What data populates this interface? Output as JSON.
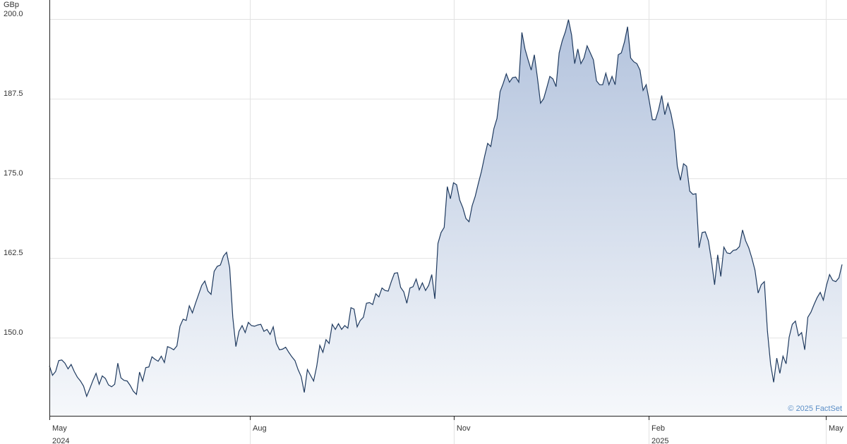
{
  "chart_data": {
    "type": "area",
    "y_unit": "GBp",
    "credit": "© 2025 FactSet",
    "color": "#1f3a5f",
    "values": [
      145.6,
      144.1,
      144.7,
      146.4,
      146.5,
      146.0,
      145.1,
      145.8,
      144.7,
      143.8,
      143.2,
      142.4,
      140.8,
      142.0,
      143.3,
      144.4,
      142.7,
      144.0,
      143.6,
      142.6,
      142.3,
      142.7,
      146.0,
      143.7,
      143.3,
      143.2,
      142.5,
      141.6,
      141.1,
      144.6,
      143.2,
      145.3,
      145.4,
      147.0,
      146.6,
      146.3,
      147.1,
      146.1,
      148.6,
      148.4,
      148.1,
      148.7,
      151.8,
      152.9,
      152.7,
      155.0,
      153.9,
      155.4,
      156.8,
      158.2,
      158.9,
      157.3,
      156.8,
      160.4,
      161.2,
      161.4,
      162.8,
      163.4,
      161.0,
      153.2,
      148.6,
      151.0,
      151.9,
      150.8,
      152.4,
      151.9,
      151.8,
      152.0,
      152.1,
      151.0,
      151.3,
      150.5,
      151.7,
      149.1,
      148.1,
      148.2,
      148.5,
      147.7,
      147.0,
      146.4,
      145.0,
      143.9,
      141.4,
      145.0,
      144.1,
      143.2,
      145.5,
      148.8,
      147.7,
      149.7,
      149.1,
      152.1,
      151.3,
      152.2,
      151.3,
      151.9,
      151.5,
      154.7,
      154.5,
      151.7,
      152.7,
      153.2,
      155.4,
      155.5,
      155.2,
      156.9,
      156.4,
      157.8,
      157.4,
      157.3,
      158.8,
      160.1,
      160.2,
      157.9,
      157.2,
      155.4,
      157.8,
      158.0,
      159.2,
      157.5,
      158.6,
      157.4,
      158.2,
      159.9,
      156.1,
      164.8,
      166.5,
      167.3,
      173.7,
      171.8,
      174.3,
      174.0,
      171.6,
      170.4,
      168.7,
      168.2,
      170.7,
      172.2,
      174.2,
      176.1,
      178.4,
      180.5,
      180.0,
      182.8,
      184.4,
      188.6,
      189.9,
      191.4,
      190.1,
      190.8,
      190.9,
      190.1,
      197.9,
      195.3,
      193.6,
      192.0,
      194.4,
      190.8,
      186.8,
      187.5,
      189.2,
      191.0,
      190.6,
      189.4,
      194.7,
      196.6,
      198.0,
      199.9,
      197.5,
      193.0,
      195.3,
      193.0,
      193.9,
      195.8,
      194.7,
      193.6,
      190.3,
      189.7,
      189.7,
      191.5,
      189.7,
      191.0,
      189.7,
      194.4,
      194.7,
      196.4,
      198.8,
      193.9,
      193.3,
      193.0,
      192.0,
      188.8,
      189.7,
      187.1,
      184.2,
      184.2,
      185.8,
      188.0,
      185.0,
      186.8,
      185.1,
      182.5,
      176.9,
      174.7,
      177.3,
      176.9,
      173.0,
      172.5,
      172.6,
      164.1,
      166.5,
      166.6,
      165.2,
      162.1,
      158.3,
      163.0,
      159.6,
      164.2,
      163.3,
      163.2,
      163.7,
      163.8,
      164.3,
      166.9,
      165.2,
      164.1,
      162.5,
      160.6,
      157.0,
      158.3,
      158.8,
      151.0,
      145.9,
      143.0,
      146.8,
      144.4,
      147.1,
      145.9,
      150.1,
      152.1,
      152.6,
      150.3,
      150.8,
      148.1,
      153.2,
      154.0,
      155.2,
      156.3,
      157.1,
      155.9,
      158.2,
      159.9,
      159.0,
      158.8,
      159.4,
      161.5
    ],
    "xlim": [
      0,
      256.6
    ],
    "xticks": [
      {
        "value": 0,
        "label": "May"
      },
      {
        "value": 64.5,
        "label": "Aug"
      },
      {
        "value": 130.1,
        "label": "Nov"
      },
      {
        "value": 192.8,
        "label": "Feb"
      },
      {
        "value": 249.8,
        "label": "May"
      }
    ],
    "year_labels": [
      {
        "value": 0,
        "label": "2024"
      },
      {
        "value": 192.8,
        "label": "2025"
      }
    ],
    "ylim": [
      137.74,
      202.99
    ],
    "yticks": [
      {
        "value": 150,
        "label": "150.0"
      },
      162.5,
      {
        "value": 175,
        "label": "175.0"
      },
      187.5,
      {
        "value": 200,
        "label": "200.0"
      }
    ],
    "grid": true
  }
}
